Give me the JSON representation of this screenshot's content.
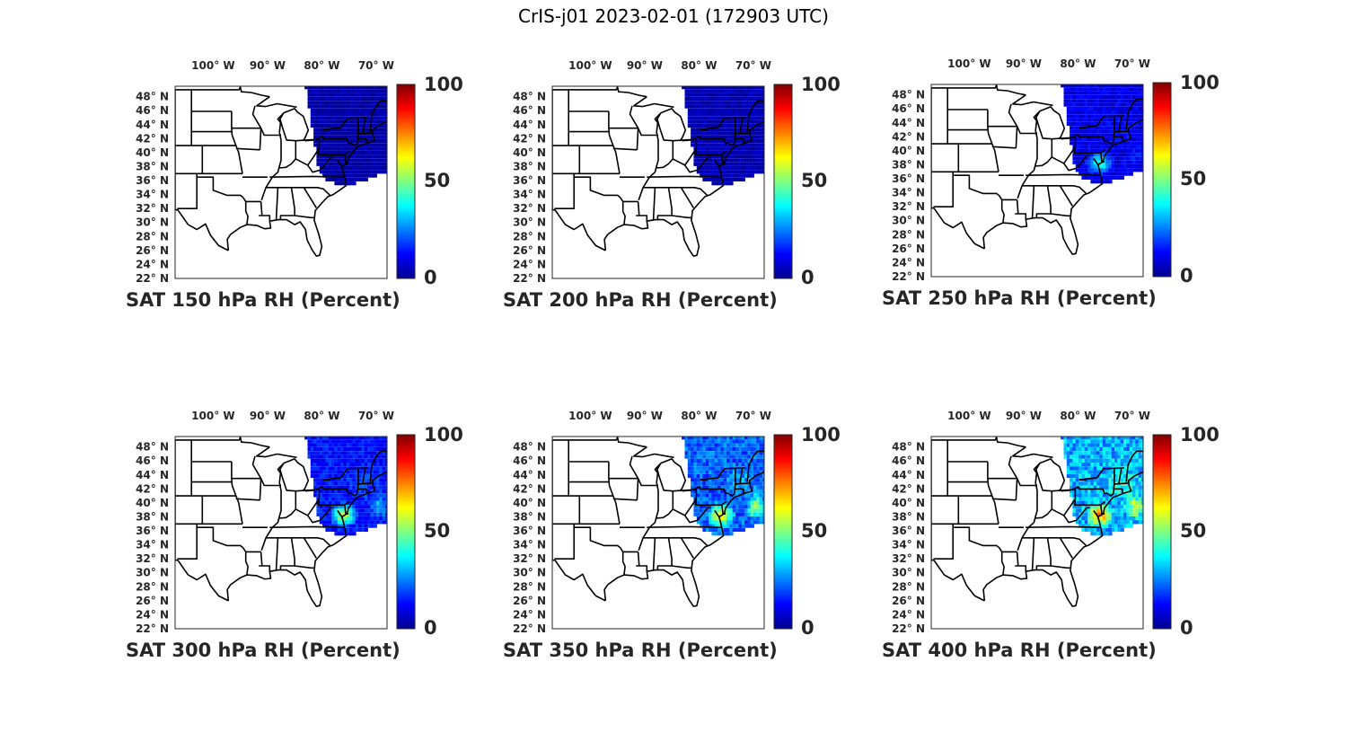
{
  "figure_title": "CrIS-j01 2023-02-01 (172903 UTC)",
  "colormap": [
    "#00008f",
    "#0000ff",
    "#0080ff",
    "#00ffff",
    "#80ff80",
    "#ffff00",
    "#ff8000",
    "#ff0000",
    "#800000"
  ],
  "chart_data": [
    {
      "type": "heatmap",
      "title": "SAT 150 hPa RH (Percent)",
      "variable": "Relative Humidity",
      "pressure_hPa": 150,
      "unit": "Percent",
      "lon_ticks": [
        "100° W",
        "90° W",
        "80° W",
        "70° W"
      ],
      "lat_ticks": [
        "48° N",
        "46° N",
        "44° N",
        "42° N",
        "40° N",
        "38° N",
        "36° N",
        "34° N",
        "32° N",
        "30° N",
        "28° N",
        "26° N",
        "24° N",
        "22° N"
      ],
      "colorbar": {
        "ticks": [
          "100",
          "50",
          "0"
        ],
        "range": [
          0,
          100
        ]
      },
      "swath_rh_estimate": {
        "background": 3,
        "northeast": 3,
        "midatlantic_coast": 3,
        "offshore": 3
      }
    },
    {
      "type": "heatmap",
      "title": "SAT 200 hPa RH (Percent)",
      "variable": "Relative Humidity",
      "pressure_hPa": 200,
      "unit": "Percent",
      "lon_ticks": [
        "100° W",
        "90° W",
        "80° W",
        "70° W"
      ],
      "lat_ticks": [
        "48° N",
        "46° N",
        "44° N",
        "42° N",
        "40° N",
        "38° N",
        "36° N",
        "34° N",
        "32° N",
        "30° N",
        "28° N",
        "26° N",
        "24° N",
        "22° N"
      ],
      "colorbar": {
        "ticks": [
          "100",
          "50",
          "0"
        ],
        "range": [
          0,
          100
        ]
      },
      "swath_rh_estimate": {
        "background": 4,
        "northeast": 4,
        "midatlantic_coast": 5,
        "offshore": 4
      }
    },
    {
      "type": "heatmap",
      "title": "SAT 250 hPa RH (Percent)",
      "variable": "Relative Humidity",
      "pressure_hPa": 250,
      "unit": "Percent",
      "lon_ticks": [
        "100° W",
        "90° W",
        "80° W",
        "70° W"
      ],
      "lat_ticks": [
        "48° N",
        "46° N",
        "44° N",
        "42° N",
        "40° N",
        "38° N",
        "36° N",
        "34° N",
        "32° N",
        "30° N",
        "28° N",
        "26° N",
        "24° N",
        "22° N"
      ],
      "colorbar": {
        "ticks": [
          "100",
          "50",
          "0"
        ],
        "range": [
          0,
          100
        ]
      },
      "swath_rh_estimate": {
        "background": 10,
        "northeast": 12,
        "midatlantic_coast": 45,
        "offshore": 15
      }
    },
    {
      "type": "heatmap",
      "title": "SAT 300 hPa RH (Percent)",
      "variable": "Relative Humidity",
      "pressure_hPa": 300,
      "unit": "Percent",
      "lon_ticks": [
        "100° W",
        "90° W",
        "80° W",
        "70° W"
      ],
      "lat_ticks": [
        "48° N",
        "46° N",
        "44° N",
        "42° N",
        "40° N",
        "38° N",
        "36° N",
        "34° N",
        "32° N",
        "30° N",
        "28° N",
        "26° N",
        "24° N",
        "22° N"
      ],
      "colorbar": {
        "ticks": [
          "100",
          "50",
          "0"
        ],
        "range": [
          0,
          100
        ]
      },
      "swath_rh_estimate": {
        "background": 14,
        "northeast": 20,
        "midatlantic_coast": 62,
        "offshore": 35
      }
    },
    {
      "type": "heatmap",
      "title": "SAT 350 hPa RH (Percent)",
      "variable": "Relative Humidity",
      "pressure_hPa": 350,
      "unit": "Percent",
      "lon_ticks": [
        "100° W",
        "90° W",
        "80° W",
        "70° W"
      ],
      "lat_ticks": [
        "48° N",
        "46° N",
        "44° N",
        "42° N",
        "40° N",
        "38° N",
        "36° N",
        "34° N",
        "32° N",
        "30° N",
        "28° N",
        "26° N",
        "24° N",
        "22° N"
      ],
      "colorbar": {
        "ticks": [
          "100",
          "50",
          "0"
        ],
        "range": [
          0,
          100
        ]
      },
      "swath_rh_estimate": {
        "background": 22,
        "northeast": 30,
        "midatlantic_coast": 72,
        "offshore": 60
      }
    },
    {
      "type": "heatmap",
      "title": "SAT 400 hPa RH (Percent)",
      "variable": "Relative Humidity",
      "pressure_hPa": 400,
      "unit": "Percent",
      "lon_ticks": [
        "100° W",
        "90° W",
        "80° W",
        "70° W"
      ],
      "lat_ticks": [
        "48° N",
        "46° N",
        "44° N",
        "42° N",
        "40° N",
        "38° N",
        "36° N",
        "34° N",
        "32° N",
        "30° N",
        "28° N",
        "26° N",
        "24° N",
        "22° N"
      ],
      "colorbar": {
        "ticks": [
          "100",
          "50",
          "0"
        ],
        "range": [
          0,
          100
        ]
      },
      "swath_rh_estimate": {
        "background": 30,
        "northeast": 42,
        "midatlantic_coast": 80,
        "offshore": 62
      }
    }
  ]
}
